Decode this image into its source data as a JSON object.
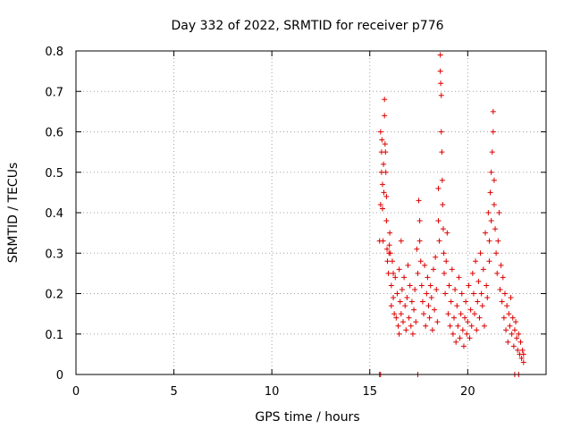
{
  "chart_data": {
    "type": "scatter",
    "title": "Day 332 of 2022, SRMTID for receiver p776",
    "xlabel": "GPS time / hours",
    "ylabel": "SRMTID / TECUs",
    "xlim": [
      0,
      24
    ],
    "ylim": [
      0,
      0.8
    ],
    "x_ticks": [
      0,
      5,
      10,
      15,
      20
    ],
    "x_tick_labels": [
      "0",
      "5",
      "10",
      "15",
      "20"
    ],
    "y_ticks": [
      0,
      0.1,
      0.2,
      0.3,
      0.4,
      0.5,
      0.6,
      0.7,
      0.8
    ],
    "y_tick_labels": [
      "0",
      "0.1",
      "0.2",
      "0.3",
      "0.4",
      "0.5",
      "0.6",
      "0.7",
      "0.8"
    ],
    "grid": true,
    "marker": "+",
    "colors": {
      "series": "#dd0000",
      "grid": "#a0a0a0",
      "axes": "#000000"
    },
    "series": [
      {
        "name": "SRMTID",
        "points": [
          [
            15.5,
            0.0
          ],
          [
            15.55,
            0.0
          ],
          [
            17.45,
            0.0
          ],
          [
            22.4,
            0.0
          ],
          [
            22.6,
            0.0
          ],
          [
            15.5,
            0.33
          ],
          [
            15.55,
            0.42
          ],
          [
            15.55,
            0.6
          ],
          [
            15.6,
            0.55
          ],
          [
            15.6,
            0.5
          ],
          [
            15.62,
            0.58
          ],
          [
            15.65,
            0.47
          ],
          [
            15.65,
            0.41
          ],
          [
            15.68,
            0.33
          ],
          [
            15.7,
            0.52
          ],
          [
            15.72,
            0.45
          ],
          [
            15.75,
            0.68
          ],
          [
            15.75,
            0.64
          ],
          [
            15.78,
            0.57
          ],
          [
            15.8,
            0.55
          ],
          [
            15.82,
            0.5
          ],
          [
            15.85,
            0.44
          ],
          [
            15.85,
            0.38
          ],
          [
            15.88,
            0.31
          ],
          [
            15.9,
            0.28
          ],
          [
            15.95,
            0.25
          ],
          [
            15.98,
            0.3
          ],
          [
            16.0,
            0.32
          ],
          [
            16.02,
            0.35
          ],
          [
            16.05,
            0.3
          ],
          [
            16.1,
            0.22
          ],
          [
            16.1,
            0.17
          ],
          [
            16.15,
            0.28
          ],
          [
            16.2,
            0.25
          ],
          [
            16.2,
            0.19
          ],
          [
            16.25,
            0.15
          ],
          [
            16.3,
            0.24
          ],
          [
            16.35,
            0.14
          ],
          [
            16.4,
            0.2
          ],
          [
            16.45,
            0.12
          ],
          [
            16.5,
            0.26
          ],
          [
            16.5,
            0.1
          ],
          [
            16.55,
            0.18
          ],
          [
            16.6,
            0.33
          ],
          [
            16.6,
            0.15
          ],
          [
            16.65,
            0.21
          ],
          [
            16.7,
            0.13
          ],
          [
            16.75,
            0.24
          ],
          [
            16.8,
            0.17
          ],
          [
            16.85,
            0.11
          ],
          [
            16.9,
            0.19
          ],
          [
            16.95,
            0.27
          ],
          [
            17.0,
            0.14
          ],
          [
            17.05,
            0.22
          ],
          [
            17.1,
            0.12
          ],
          [
            17.15,
            0.18
          ],
          [
            17.2,
            0.1
          ],
          [
            17.25,
            0.16
          ],
          [
            17.3,
            0.21
          ],
          [
            17.35,
            0.13
          ],
          [
            17.4,
            0.31
          ],
          [
            17.45,
            0.25
          ],
          [
            17.5,
            0.43
          ],
          [
            17.55,
            0.38
          ],
          [
            17.55,
            0.33
          ],
          [
            17.6,
            0.28
          ],
          [
            17.65,
            0.22
          ],
          [
            17.7,
            0.18
          ],
          [
            17.75,
            0.15
          ],
          [
            17.8,
            0.27
          ],
          [
            17.85,
            0.12
          ],
          [
            17.9,
            0.2
          ],
          [
            17.95,
            0.24
          ],
          [
            18.0,
            0.17
          ],
          [
            18.05,
            0.14
          ],
          [
            18.1,
            0.22
          ],
          [
            18.15,
            0.19
          ],
          [
            18.2,
            0.11
          ],
          [
            18.25,
            0.26
          ],
          [
            18.3,
            0.16
          ],
          [
            18.35,
            0.29
          ],
          [
            18.4,
            0.21
          ],
          [
            18.45,
            0.13
          ],
          [
            18.5,
            0.38
          ],
          [
            18.5,
            0.46
          ],
          [
            18.55,
            0.33
          ],
          [
            18.6,
            0.79
          ],
          [
            18.6,
            0.75
          ],
          [
            18.62,
            0.72
          ],
          [
            18.65,
            0.69
          ],
          [
            18.65,
            0.6
          ],
          [
            18.68,
            0.55
          ],
          [
            18.7,
            0.48
          ],
          [
            18.72,
            0.42
          ],
          [
            18.75,
            0.36
          ],
          [
            18.78,
            0.3
          ],
          [
            18.8,
            0.25
          ],
          [
            18.85,
            0.2
          ],
          [
            18.9,
            0.28
          ],
          [
            18.95,
            0.35
          ],
          [
            19.0,
            0.15
          ],
          [
            19.05,
            0.22
          ],
          [
            19.1,
            0.12
          ],
          [
            19.15,
            0.18
          ],
          [
            19.2,
            0.26
          ],
          [
            19.25,
            0.1
          ],
          [
            19.3,
            0.14
          ],
          [
            19.35,
            0.21
          ],
          [
            19.4,
            0.08
          ],
          [
            19.45,
            0.17
          ],
          [
            19.5,
            0.12
          ],
          [
            19.55,
            0.24
          ],
          [
            19.6,
            0.09
          ],
          [
            19.65,
            0.15
          ],
          [
            19.7,
            0.2
          ],
          [
            19.75,
            0.11
          ],
          [
            19.8,
            0.07
          ],
          [
            19.85,
            0.14
          ],
          [
            19.9,
            0.18
          ],
          [
            19.95,
            0.1
          ],
          [
            20.0,
            0.13
          ],
          [
            20.05,
            0.22
          ],
          [
            20.1,
            0.09
          ],
          [
            20.15,
            0.16
          ],
          [
            20.2,
            0.12
          ],
          [
            20.25,
            0.25
          ],
          [
            20.3,
            0.2
          ],
          [
            20.35,
            0.15
          ],
          [
            20.4,
            0.28
          ],
          [
            20.45,
            0.11
          ],
          [
            20.5,
            0.18
          ],
          [
            20.55,
            0.23
          ],
          [
            20.6,
            0.14
          ],
          [
            20.65,
            0.3
          ],
          [
            20.7,
            0.2
          ],
          [
            20.75,
            0.17
          ],
          [
            20.8,
            0.26
          ],
          [
            20.85,
            0.12
          ],
          [
            20.9,
            0.35
          ],
          [
            20.95,
            0.22
          ],
          [
            21.0,
            0.19
          ],
          [
            21.05,
            0.4
          ],
          [
            21.1,
            0.28
          ],
          [
            21.1,
            0.33
          ],
          [
            21.15,
            0.45
          ],
          [
            21.2,
            0.38
          ],
          [
            21.2,
            0.5
          ],
          [
            21.25,
            0.55
          ],
          [
            21.3,
            0.65
          ],
          [
            21.3,
            0.6
          ],
          [
            21.35,
            0.48
          ],
          [
            21.35,
            0.42
          ],
          [
            21.4,
            0.36
          ],
          [
            21.45,
            0.3
          ],
          [
            21.5,
            0.25
          ],
          [
            21.55,
            0.33
          ],
          [
            21.6,
            0.4
          ],
          [
            21.65,
            0.21
          ],
          [
            21.7,
            0.27
          ],
          [
            21.75,
            0.18
          ],
          [
            21.8,
            0.24
          ],
          [
            21.85,
            0.14
          ],
          [
            21.9,
            0.2
          ],
          [
            21.95,
            0.11
          ],
          [
            22.0,
            0.17
          ],
          [
            22.05,
            0.08
          ],
          [
            22.1,
            0.15
          ],
          [
            22.15,
            0.12
          ],
          [
            22.2,
            0.19
          ],
          [
            22.25,
            0.1
          ],
          [
            22.3,
            0.14
          ],
          [
            22.35,
            0.07
          ],
          [
            22.4,
            0.11
          ],
          [
            22.45,
            0.13
          ],
          [
            22.5,
            0.09
          ],
          [
            22.55,
            0.06
          ],
          [
            22.6,
            0.1
          ],
          [
            22.65,
            0.05
          ],
          [
            22.7,
            0.08
          ],
          [
            22.75,
            0.04
          ],
          [
            22.8,
            0.06
          ],
          [
            22.85,
            0.03
          ],
          [
            22.85,
            0.05
          ]
        ]
      }
    ]
  }
}
